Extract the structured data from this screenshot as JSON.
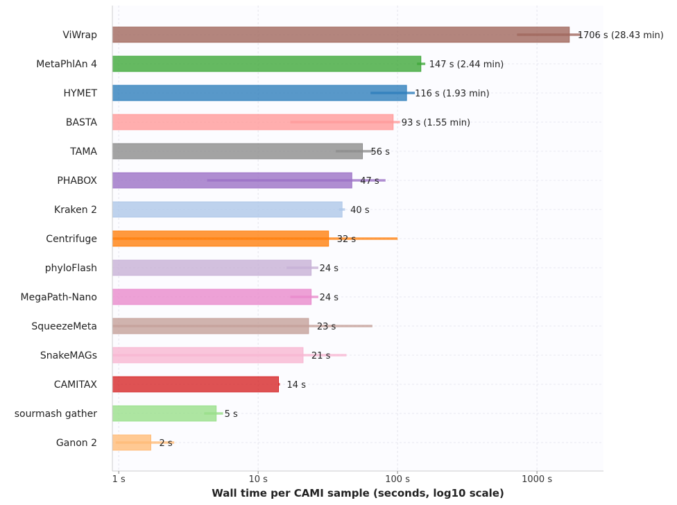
{
  "chart_data": {
    "type": "bar",
    "orientation": "horizontal",
    "title": "",
    "xlabel": "Wall time per CAMI sample (seconds, log10 scale)",
    "ylabel": "",
    "x_scale": "log10",
    "xlim": [
      0.9,
      3000
    ],
    "x_ticks": [
      {
        "value": 1,
        "label": "1 s"
      },
      {
        "value": 10,
        "label": "10 s"
      },
      {
        "value": 100,
        "label": "100 s"
      },
      {
        "value": 1000,
        "label": "1000 s"
      }
    ],
    "grid": true,
    "bars": [
      {
        "name": "ViWrap",
        "value": 1706,
        "label": "1706 s (28.43 min)",
        "err_low": 720,
        "err_high": 2050,
        "color": "#a0675c"
      },
      {
        "name": "MetaPhlAn 4",
        "value": 147,
        "label": "147 s (2.44 min)",
        "err_low": 138,
        "err_high": 158,
        "color": "#3ea83a"
      },
      {
        "name": "HYMET",
        "value": 116,
        "label": "116 s (1.93 min)",
        "err_low": 64,
        "err_high": 133,
        "color": "#2e7ebc"
      },
      {
        "name": "BASTA",
        "value": 93,
        "label": "93 s (1.55 min)",
        "err_low": 17,
        "err_high": 104,
        "color": "#ff9a9a"
      },
      {
        "name": "TAMA",
        "value": 56,
        "label": "56 s",
        "err_low": 36,
        "err_high": 67,
        "color": "#8c8c8c"
      },
      {
        "name": "PHABOX",
        "value": 47,
        "label": "47 s",
        "err_low": 4.3,
        "err_high": 82,
        "color": "#9b71c6"
      },
      {
        "name": "Kraken 2",
        "value": 40,
        "label": "40 s",
        "err_low": 38,
        "err_high": 42,
        "color": "#aec7e8"
      },
      {
        "name": "Centrifuge",
        "value": 32,
        "label": "32 s",
        "err_low": 0.9,
        "err_high": 100,
        "color": "#ff7f0e"
      },
      {
        "name": "phyloFlash",
        "value": 24,
        "label": "24 s",
        "err_low": 16,
        "err_high": 27,
        "color": "#c7b0d6"
      },
      {
        "name": "MegaPath-Nano",
        "value": 24,
        "label": "24 s",
        "err_low": 17,
        "err_high": 27,
        "color": "#e889cc"
      },
      {
        "name": "SqueezeMeta",
        "value": 23,
        "label": "23 s",
        "err_low": 0.9,
        "err_high": 66,
        "color": "#c4a09a"
      },
      {
        "name": "SnakeMAGs",
        "value": 21,
        "label": "21 s",
        "err_low": 0.9,
        "err_high": 43,
        "color": "#f7b6d2"
      },
      {
        "name": "CAMITAX",
        "value": 14,
        "label": "14 s",
        "err_low": 14,
        "err_high": 14.3,
        "color": "#d62728"
      },
      {
        "name": "sourmash gather",
        "value": 5,
        "label": "5 s",
        "err_low": 4.1,
        "err_high": 5.6,
        "color": "#98df8a"
      },
      {
        "name": "Ganon 2",
        "value": 1.7,
        "label": "2 s",
        "err_low": 0.95,
        "err_high": 2.5,
        "color": "#ffbb78"
      }
    ]
  }
}
